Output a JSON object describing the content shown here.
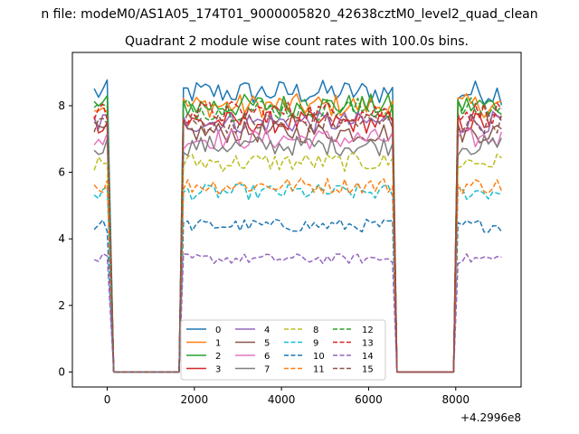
{
  "figure": {
    "suptitle": "n file: modeM0/AS1A05_174T01_9000005820_42638cztM0_level2_quad_clean",
    "title": "Quadrant 2 module wise count rates with 100.0s bins.",
    "x_offset_label": "+4.2996e8"
  },
  "chart_data": {
    "type": "line",
    "title": "Quadrant 2 module wise count rates with 100.0s bins.",
    "xlabel": "",
    "ylabel": "",
    "xlim": [
      -800,
      9500
    ],
    "ylim": [
      -0.45,
      9.6
    ],
    "x_offset": 429960000,
    "xticks": [
      0,
      2000,
      4000,
      6000,
      8000
    ],
    "yticks": [
      0,
      2,
      4,
      6,
      8
    ],
    "grid": false,
    "legend": {
      "position": "lower-center",
      "columns": 4
    },
    "segments": [
      {
        "start": -300,
        "end": 50
      },
      {
        "start": 1750,
        "end": 6550
      },
      {
        "start": 8050,
        "end": 9050
      }
    ],
    "gaps": [
      {
        "start": 150,
        "end": 1650,
        "value": 0
      },
      {
        "start": 6650,
        "end": 7950,
        "value": 0
      }
    ],
    "bin_seconds": 100,
    "series": [
      {
        "name": "0",
        "style": "solid",
        "color": "#1f77b4",
        "level": 8.4
      },
      {
        "name": "1",
        "style": "solid",
        "color": "#ff7f0e",
        "level": 8.0
      },
      {
        "name": "2",
        "style": "solid",
        "color": "#2ca02c",
        "level": 8.0
      },
      {
        "name": "3",
        "style": "solid",
        "color": "#d62728",
        "level": 7.5
      },
      {
        "name": "4",
        "style": "solid",
        "color": "#9467bd",
        "level": 7.5
      },
      {
        "name": "5",
        "style": "solid",
        "color": "#8c564b",
        "level": 7.2
      },
      {
        "name": "6",
        "style": "solid",
        "color": "#e377c2",
        "level": 7.0
      },
      {
        "name": "7",
        "style": "solid",
        "color": "#7f7f7f",
        "level": 6.8
      },
      {
        "name": "8",
        "style": "dashed",
        "color": "#bcbd22",
        "level": 6.3
      },
      {
        "name": "9",
        "style": "dashed",
        "color": "#17becf",
        "level": 5.4
      },
      {
        "name": "10",
        "style": "dashed",
        "color": "#1f77b4",
        "level": 4.4
      },
      {
        "name": "11",
        "style": "dashed",
        "color": "#ff7f0e",
        "level": 5.6
      },
      {
        "name": "12",
        "style": "dashed",
        "color": "#2ca02c",
        "level": 7.9
      },
      {
        "name": "13",
        "style": "dashed",
        "color": "#d62728",
        "level": 7.8
      },
      {
        "name": "14",
        "style": "dashed",
        "color": "#9467bd",
        "level": 3.4
      },
      {
        "name": "15",
        "style": "dashed",
        "color": "#8c564b",
        "level": 7.5
      }
    ]
  }
}
